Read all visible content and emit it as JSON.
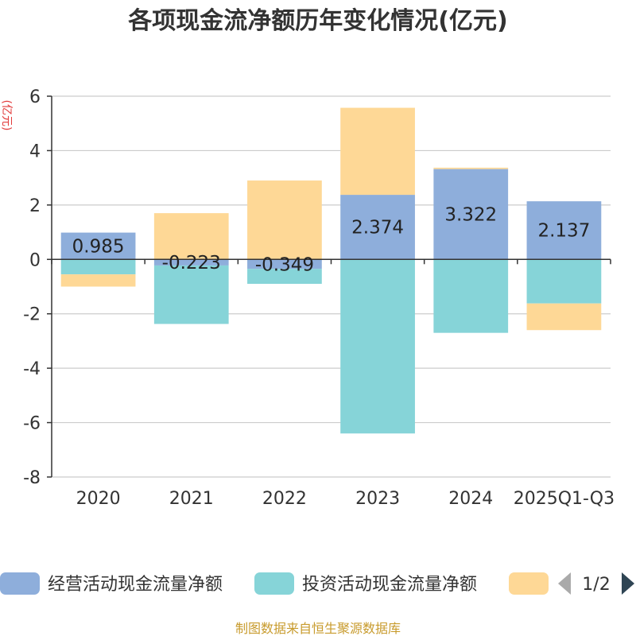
{
  "chart_data": {
    "type": "bar",
    "stacked": true,
    "title": "各项现金流净额历年变化情况(亿元)",
    "ylabel": "(亿元)",
    "xlabel": "",
    "ylim": [
      -8,
      6
    ],
    "yticks": [
      6,
      4,
      2,
      0,
      -2,
      -4,
      -6,
      -8
    ],
    "grid": true,
    "categories": [
      "2020",
      "2021",
      "2022",
      "2023",
      "2024",
      "2025Q1-Q3"
    ],
    "series": [
      {
        "name": "经营活动现金流量净额",
        "color": "#8eaedb",
        "values": [
          0.985,
          -0.223,
          -0.349,
          2.374,
          3.322,
          2.137
        ],
        "labels": [
          "0.985",
          "-0.223",
          "-0.349",
          "2.374",
          "3.322",
          "2.137"
        ]
      },
      {
        "name": "投资活动现金流量净额",
        "color": "#86d4d8",
        "values": [
          -0.55,
          -2.15,
          -0.55,
          -6.4,
          -2.7,
          -1.62
        ]
      },
      {
        "name": "",
        "color": "#fed896",
        "values": [
          -0.45,
          1.7,
          2.9,
          3.2,
          0.05,
          -0.98
        ]
      }
    ],
    "legend": {
      "position": "bottom",
      "page": "1/2"
    }
  },
  "source": "制图数据来自恒生聚源数据库"
}
